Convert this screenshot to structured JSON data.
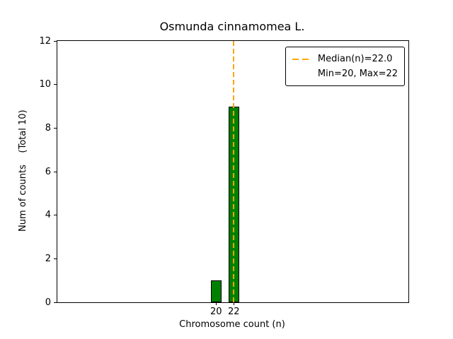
{
  "chart_data": {
    "type": "bar",
    "title": "Osmunda cinnamomea L.",
    "xlabel": "Chromosome count (n)",
    "ylabel": "Num of counts    (Total 10)",
    "x": [
      20,
      22
    ],
    "values": [
      1,
      9
    ],
    "bar_color": "#008000",
    "bar_edge_color": "#000000",
    "bar_width": 1.2,
    "xlim": [
      2.0,
      41.8
    ],
    "ylim": [
      0,
      12
    ],
    "yticks": [
      0,
      2,
      4,
      6,
      8,
      10,
      12
    ],
    "xticks": [
      20,
      22
    ],
    "grid": false,
    "median_line": {
      "x": 22.0,
      "color": "#ffa500",
      "style": "dashed"
    },
    "legend": {
      "position": "upper right",
      "entries": [
        {
          "label": "Median(n)=22.0",
          "marker": "dashed-line",
          "color": "#ffa500"
        },
        {
          "label": "Min=20, Max=22",
          "marker": "none",
          "color": ""
        }
      ]
    }
  }
}
